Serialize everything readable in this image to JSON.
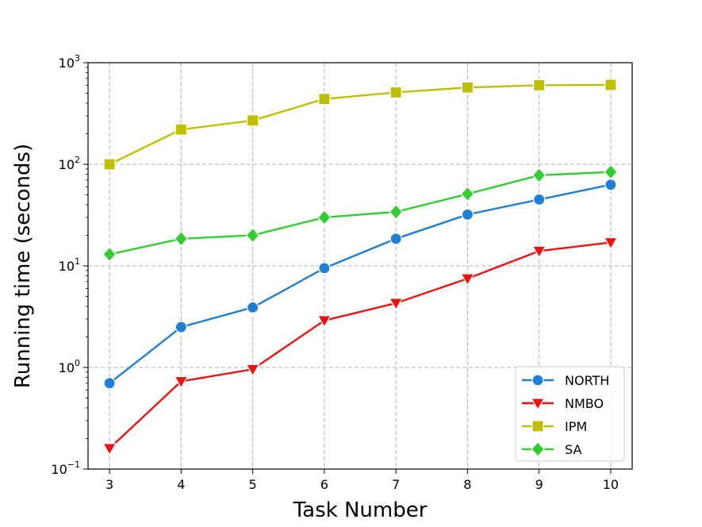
{
  "chart_data": {
    "type": "line",
    "title": "",
    "xlabel": "Task Number",
    "ylabel": "Running time (seconds)",
    "y_scale": "log",
    "ylim": [
      0.1,
      1000
    ],
    "xlim": [
      2.7,
      10.3
    ],
    "x": [
      3,
      4,
      5,
      6,
      7,
      8,
      9,
      10
    ],
    "x_ticks": [
      "3",
      "4",
      "5",
      "6",
      "7",
      "8",
      "9",
      "10"
    ],
    "y_ticks": [
      {
        "value": 0.1,
        "base": "10",
        "exp": "−1"
      },
      {
        "value": 1,
        "base": "10",
        "exp": "0"
      },
      {
        "value": 10,
        "base": "10",
        "exp": "1"
      },
      {
        "value": 100,
        "base": "10",
        "exp": "2"
      },
      {
        "value": 1000,
        "base": "10",
        "exp": "3"
      }
    ],
    "grid": true,
    "legend_position": "lower-right",
    "series": [
      {
        "name": "NORTH",
        "color": "#1f7fd4",
        "marker": "circle",
        "values": [
          0.7,
          2.5,
          3.9,
          9.5,
          18.5,
          32,
          45,
          63
        ]
      },
      {
        "name": "NMBO",
        "color": "#ee1111",
        "marker": "triangle-down",
        "values": [
          0.16,
          0.73,
          0.96,
          2.9,
          4.3,
          7.5,
          14,
          17
        ]
      },
      {
        "name": "IPM",
        "color": "#bfbf00",
        "marker": "square",
        "values": [
          100,
          220,
          270,
          440,
          510,
          570,
          600,
          605
        ]
      },
      {
        "name": "SA",
        "color": "#33cc33",
        "marker": "diamond",
        "values": [
          13,
          18.5,
          20,
          30,
          34,
          51,
          78,
          84
        ]
      }
    ]
  }
}
